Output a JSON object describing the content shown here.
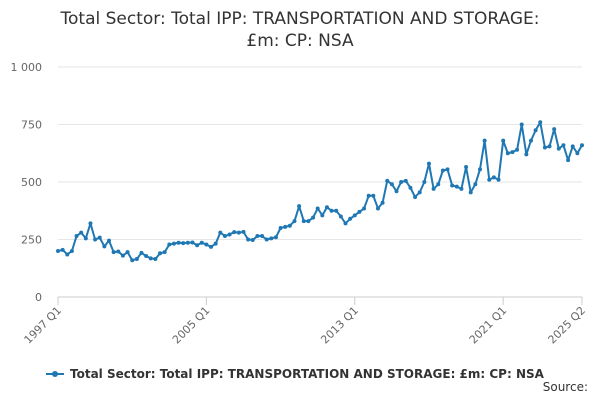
{
  "chart_data": {
    "type": "line",
    "title_line1": "Total Sector: Total IPP: TRANSPORTATION AND STORAGE:",
    "title_line2": "£m: CP: NSA",
    "xlabel": "",
    "ylabel": "",
    "ylim": [
      0,
      1000
    ],
    "yticks": [
      {
        "value": 0,
        "label": "0"
      },
      {
        "value": 250,
        "label": "250"
      },
      {
        "value": 500,
        "label": "500"
      },
      {
        "value": 750,
        "label": "750"
      },
      {
        "value": 1000,
        "label": "1 000"
      }
    ],
    "xticks": [
      {
        "index": 0,
        "label": "1997 Q1"
      },
      {
        "index": 32,
        "label": "2005 Q1"
      },
      {
        "index": 64,
        "label": "2013 Q1"
      },
      {
        "index": 96,
        "label": "2021 Q1"
      },
      {
        "index": 113,
        "label": "2025 Q2"
      }
    ],
    "grid": true,
    "legend": "bottom",
    "series": [
      {
        "name": "Total Sector: Total IPP: TRANSPORTATION AND STORAGE: £m: CP: NSA",
        "color": "#1f78b4",
        "values": [
          200,
          205,
          185,
          200,
          265,
          280,
          255,
          320,
          250,
          258,
          220,
          245,
          195,
          198,
          180,
          195,
          160,
          165,
          192,
          178,
          168,
          165,
          190,
          195,
          228,
          232,
          236,
          234,
          236,
          237,
          225,
          236,
          228,
          218,
          232,
          280,
          265,
          272,
          282,
          280,
          283,
          250,
          248,
          265,
          265,
          250,
          255,
          260,
          300,
          305,
          310,
          330,
          395,
          330,
          330,
          345,
          385,
          355,
          390,
          375,
          375,
          350,
          320,
          340,
          355,
          370,
          385,
          440,
          440,
          385,
          410,
          505,
          490,
          460,
          500,
          505,
          475,
          435,
          455,
          500,
          580,
          470,
          490,
          550,
          555,
          485,
          480,
          470,
          565,
          455,
          490,
          555,
          680,
          510,
          520,
          510,
          680,
          625,
          630,
          640,
          750,
          620,
          680,
          725,
          760,
          650,
          655,
          730,
          645,
          660,
          595,
          655,
          625,
          660
        ]
      }
    ],
    "source_label": "Source:"
  }
}
